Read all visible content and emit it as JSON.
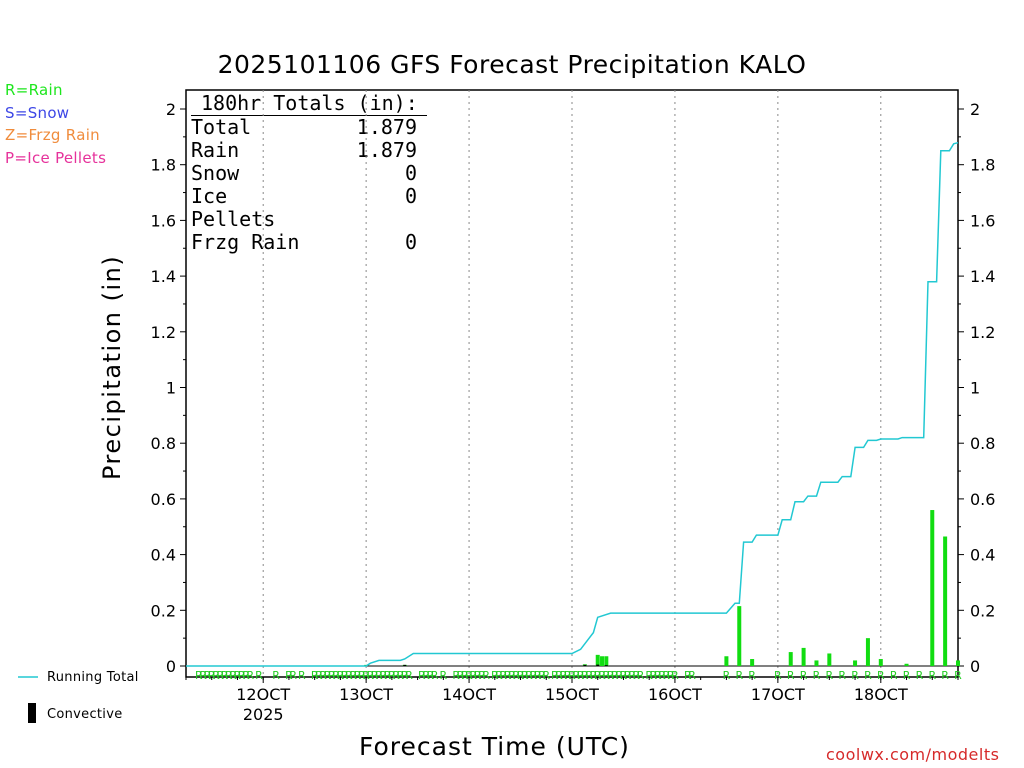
{
  "title": "2025101106 GFS Forecast Precipitation KALO",
  "legend": [
    {
      "label": "R=Rain",
      "color": "#1ee61e"
    },
    {
      "label": "S=Snow",
      "color": "#3c46e6"
    },
    {
      "label": "Z=Frzg Rain",
      "color": "#f08c3c"
    },
    {
      "label": "P=Ice Pellets",
      "color": "#e6329b"
    }
  ],
  "totals": {
    "header": "180hr Totals (in):",
    "rows": [
      {
        "label": "Total",
        "value": "1.879"
      },
      {
        "label": "Rain",
        "value": "1.879"
      },
      {
        "label": "Snow",
        "value": "0"
      },
      {
        "label": "Ice Pellets",
        "value": "0"
      },
      {
        "label": "Frzg Rain",
        "value": "0"
      }
    ]
  },
  "bottom_legend": {
    "running_total": "Running Total",
    "convective": "Convective"
  },
  "xlabel": "Forecast Time (UTC)",
  "credit": "coolwx.com/modelts",
  "colors": {
    "running_total": "#22c8d2",
    "rain_bar": "#11dd11",
    "convective": "#000000",
    "rain_marker": "#22cc22"
  },
  "chart_data": {
    "type": "bar",
    "title": "2025101106 GFS Forecast Precipitation KALO",
    "xlabel": "Forecast Time (UTC)",
    "ylabel": "Precipitation (in)",
    "ylim": [
      0,
      2.05
    ],
    "yticks": [
      0,
      0.2,
      0.4,
      0.6,
      0.8,
      1,
      1.2,
      1.4,
      1.6,
      1.8,
      2
    ],
    "ytick_labels": [
      "0",
      "0.2",
      "0.4",
      "0.6",
      "0.8",
      "1",
      "1.2",
      "1.4",
      "1.6",
      "1.8",
      "2"
    ],
    "xlim": [
      0,
      180
    ],
    "xticks": [
      {
        "hour": 18,
        "label": "12OCT",
        "sublabel": "2025"
      },
      {
        "hour": 42,
        "label": "13OCT"
      },
      {
        "hour": 66,
        "label": "14OCT"
      },
      {
        "hour": 90,
        "label": "15OCT"
      },
      {
        "hour": 114,
        "label": "16OCT"
      },
      {
        "hour": 138,
        "label": "17OCT"
      },
      {
        "hour": 162,
        "label": "18OCT"
      }
    ],
    "bars": [
      {
        "hour": 42,
        "value": 0.004,
        "convective": 0.002
      },
      {
        "hour": 51,
        "value": 0.004,
        "convective": 0.004
      },
      {
        "hour": 93,
        "value": 0.006,
        "convective": 0.004
      },
      {
        "hour": 96,
        "value": 0.04,
        "convective": 0.005
      },
      {
        "hour": 97,
        "value": 0.035
      },
      {
        "hour": 98,
        "value": 0.035,
        "convective": 0.003
      },
      {
        "hour": 126,
        "value": 0.035
      },
      {
        "hour": 129,
        "value": 0.215
      },
      {
        "hour": 132,
        "value": 0.025
      },
      {
        "hour": 141,
        "value": 0.05
      },
      {
        "hour": 144,
        "value": 0.065
      },
      {
        "hour": 147,
        "value": 0.02
      },
      {
        "hour": 150,
        "value": 0.045
      },
      {
        "hour": 156,
        "value": 0.02
      },
      {
        "hour": 159,
        "value": 0.1
      },
      {
        "hour": 162,
        "value": 0.025
      },
      {
        "hour": 168,
        "value": 0.008
      },
      {
        "hour": 174,
        "value": 0.56
      },
      {
        "hour": 177,
        "value": 0.465
      },
      {
        "hour": 180,
        "value": 0.02
      }
    ],
    "series": [
      {
        "name": "Running Total",
        "points": [
          [
            0,
            0
          ],
          [
            42,
            0
          ],
          [
            43,
            0.01
          ],
          [
            45,
            0.02
          ],
          [
            50,
            0.02
          ],
          [
            51,
            0.025
          ],
          [
            53,
            0.045
          ],
          [
            90,
            0.045
          ],
          [
            92,
            0.06
          ],
          [
            95,
            0.12
          ],
          [
            96,
            0.175
          ],
          [
            99,
            0.19
          ],
          [
            126,
            0.19
          ],
          [
            128,
            0.225
          ],
          [
            129,
            0.225
          ],
          [
            130,
            0.445
          ],
          [
            132,
            0.445
          ],
          [
            133,
            0.47
          ],
          [
            138,
            0.47
          ],
          [
            139,
            0.525
          ],
          [
            141,
            0.525
          ],
          [
            142,
            0.59
          ],
          [
            144,
            0.59
          ],
          [
            145,
            0.61
          ],
          [
            147,
            0.61
          ],
          [
            148,
            0.66
          ],
          [
            152,
            0.66
          ],
          [
            153,
            0.68
          ],
          [
            155,
            0.68
          ],
          [
            156,
            0.785
          ],
          [
            158,
            0.785
          ],
          [
            159,
            0.81
          ],
          [
            161,
            0.81
          ],
          [
            162,
            0.815
          ],
          [
            166,
            0.815
          ],
          [
            167,
            0.82
          ],
          [
            172,
            0.82
          ],
          [
            173,
            1.38
          ],
          [
            175,
            1.38
          ],
          [
            176,
            1.85
          ],
          [
            178,
            1.85
          ],
          [
            179,
            1.875
          ],
          [
            180,
            1.879
          ]
        ]
      }
    ],
    "rain_marker_hours": [
      3,
      4,
      5,
      6,
      7,
      8,
      9,
      10,
      11,
      12,
      13,
      14,
      15,
      17,
      21,
      24,
      25,
      27,
      30,
      31,
      32,
      33,
      34,
      35,
      36,
      37,
      38,
      39,
      40,
      41,
      42,
      43,
      44,
      45,
      46,
      47,
      48,
      49,
      50,
      51,
      52,
      55,
      56,
      57,
      58,
      60,
      63,
      64,
      65,
      66,
      67,
      68,
      69,
      70,
      72,
      73,
      74,
      75,
      76,
      77,
      78,
      79,
      80,
      81,
      82,
      83,
      84,
      86,
      87,
      88,
      89,
      90,
      91,
      92,
      93,
      94,
      95,
      96,
      97,
      98,
      99,
      100,
      101,
      102,
      103,
      104,
      105,
      106,
      108,
      109,
      110,
      111,
      112,
      113,
      114,
      117,
      118,
      126,
      129,
      132,
      138,
      141,
      144,
      147,
      150,
      153,
      156,
      159,
      162,
      165,
      168,
      171,
      174,
      177,
      180
    ],
    "rain_marker_label": "R"
  }
}
